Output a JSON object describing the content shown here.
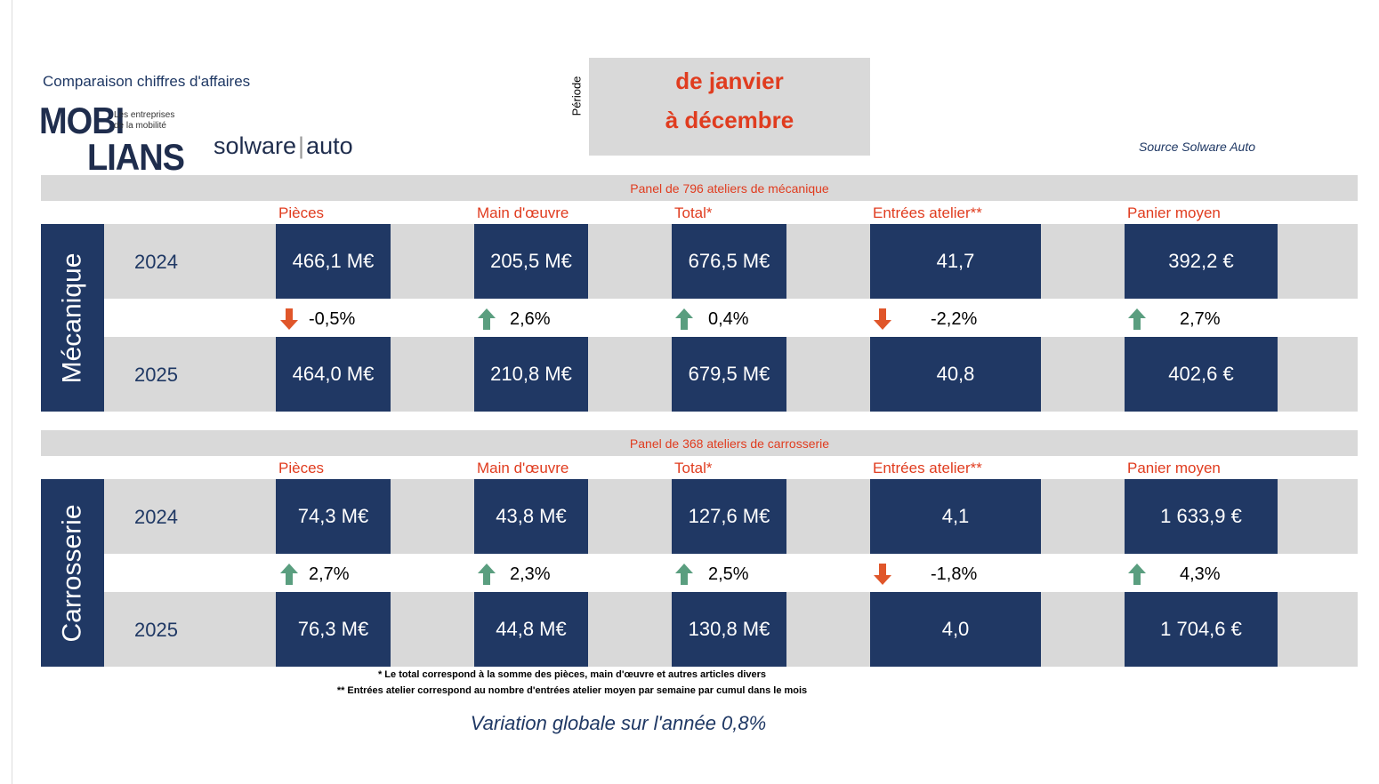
{
  "header": {
    "title": "Comparaison chiffres d'affaires",
    "logo": {
      "mobi": "MOBI",
      "lians": "LIANS",
      "tagline_1": "Les entreprises",
      "tagline_2": "de la mobilité"
    },
    "partner": {
      "left": "solware",
      "right": "auto"
    },
    "period_label": "Période",
    "period": [
      "de janvier",
      "à décembre"
    ],
    "source": "Source Solware Auto"
  },
  "sections": [
    {
      "panel": "Panel de 796 ateliers de mécanique",
      "side_label": "Mécanique",
      "columns": [
        "Pièces",
        "Main d'œuvre",
        "Total*",
        "Entrées atelier**",
        "Panier moyen"
      ],
      "rows": [
        {
          "year": "2024",
          "values": [
            "466,1 M€",
            "205,5 M€",
            "676,5 M€",
            "41,7",
            "392,2 €"
          ]
        },
        {
          "year": "2025",
          "values": [
            "464,0 M€",
            "210,8 M€",
            "679,5 M€",
            "40,8",
            "402,6 €"
          ]
        }
      ],
      "variations": [
        {
          "text": "-0,5%",
          "trend": "down"
        },
        {
          "text": "2,6%",
          "trend": "up"
        },
        {
          "text": "0,4%",
          "trend": "up"
        },
        {
          "text": "-2,2%",
          "trend": "down"
        },
        {
          "text": "2,7%",
          "trend": "up"
        }
      ]
    },
    {
      "panel": "Panel de 368 ateliers de carrosserie",
      "side_label": "Carrosserie",
      "columns": [
        "Pièces",
        "Main d'œuvre",
        "Total*",
        "Entrées atelier**",
        "Panier moyen"
      ],
      "rows": [
        {
          "year": "2024",
          "values": [
            "74,3 M€",
            "43,8 M€",
            "127,6 M€",
            "4,1",
            "1 633,9 €"
          ]
        },
        {
          "year": "2025",
          "values": [
            "76,3 M€",
            "44,8 M€",
            "130,8 M€",
            "4,0",
            "1 704,6 €"
          ]
        }
      ],
      "variations": [
        {
          "text": "2,7%",
          "trend": "up"
        },
        {
          "text": "2,3%",
          "trend": "up"
        },
        {
          "text": "2,5%",
          "trend": "up"
        },
        {
          "text": "-1,8%",
          "trend": "down"
        },
        {
          "text": "4,3%",
          "trend": "up"
        }
      ]
    }
  ],
  "footnotes": [
    "* Le total correspond à la somme des pièces, main d'œuvre et autres articles divers",
    "** Entrées atelier correspond au nombre d'entrées atelier moyen par semaine par cumul dans le mois"
  ],
  "summary": "Variation globale sur l'année 0,8%"
}
